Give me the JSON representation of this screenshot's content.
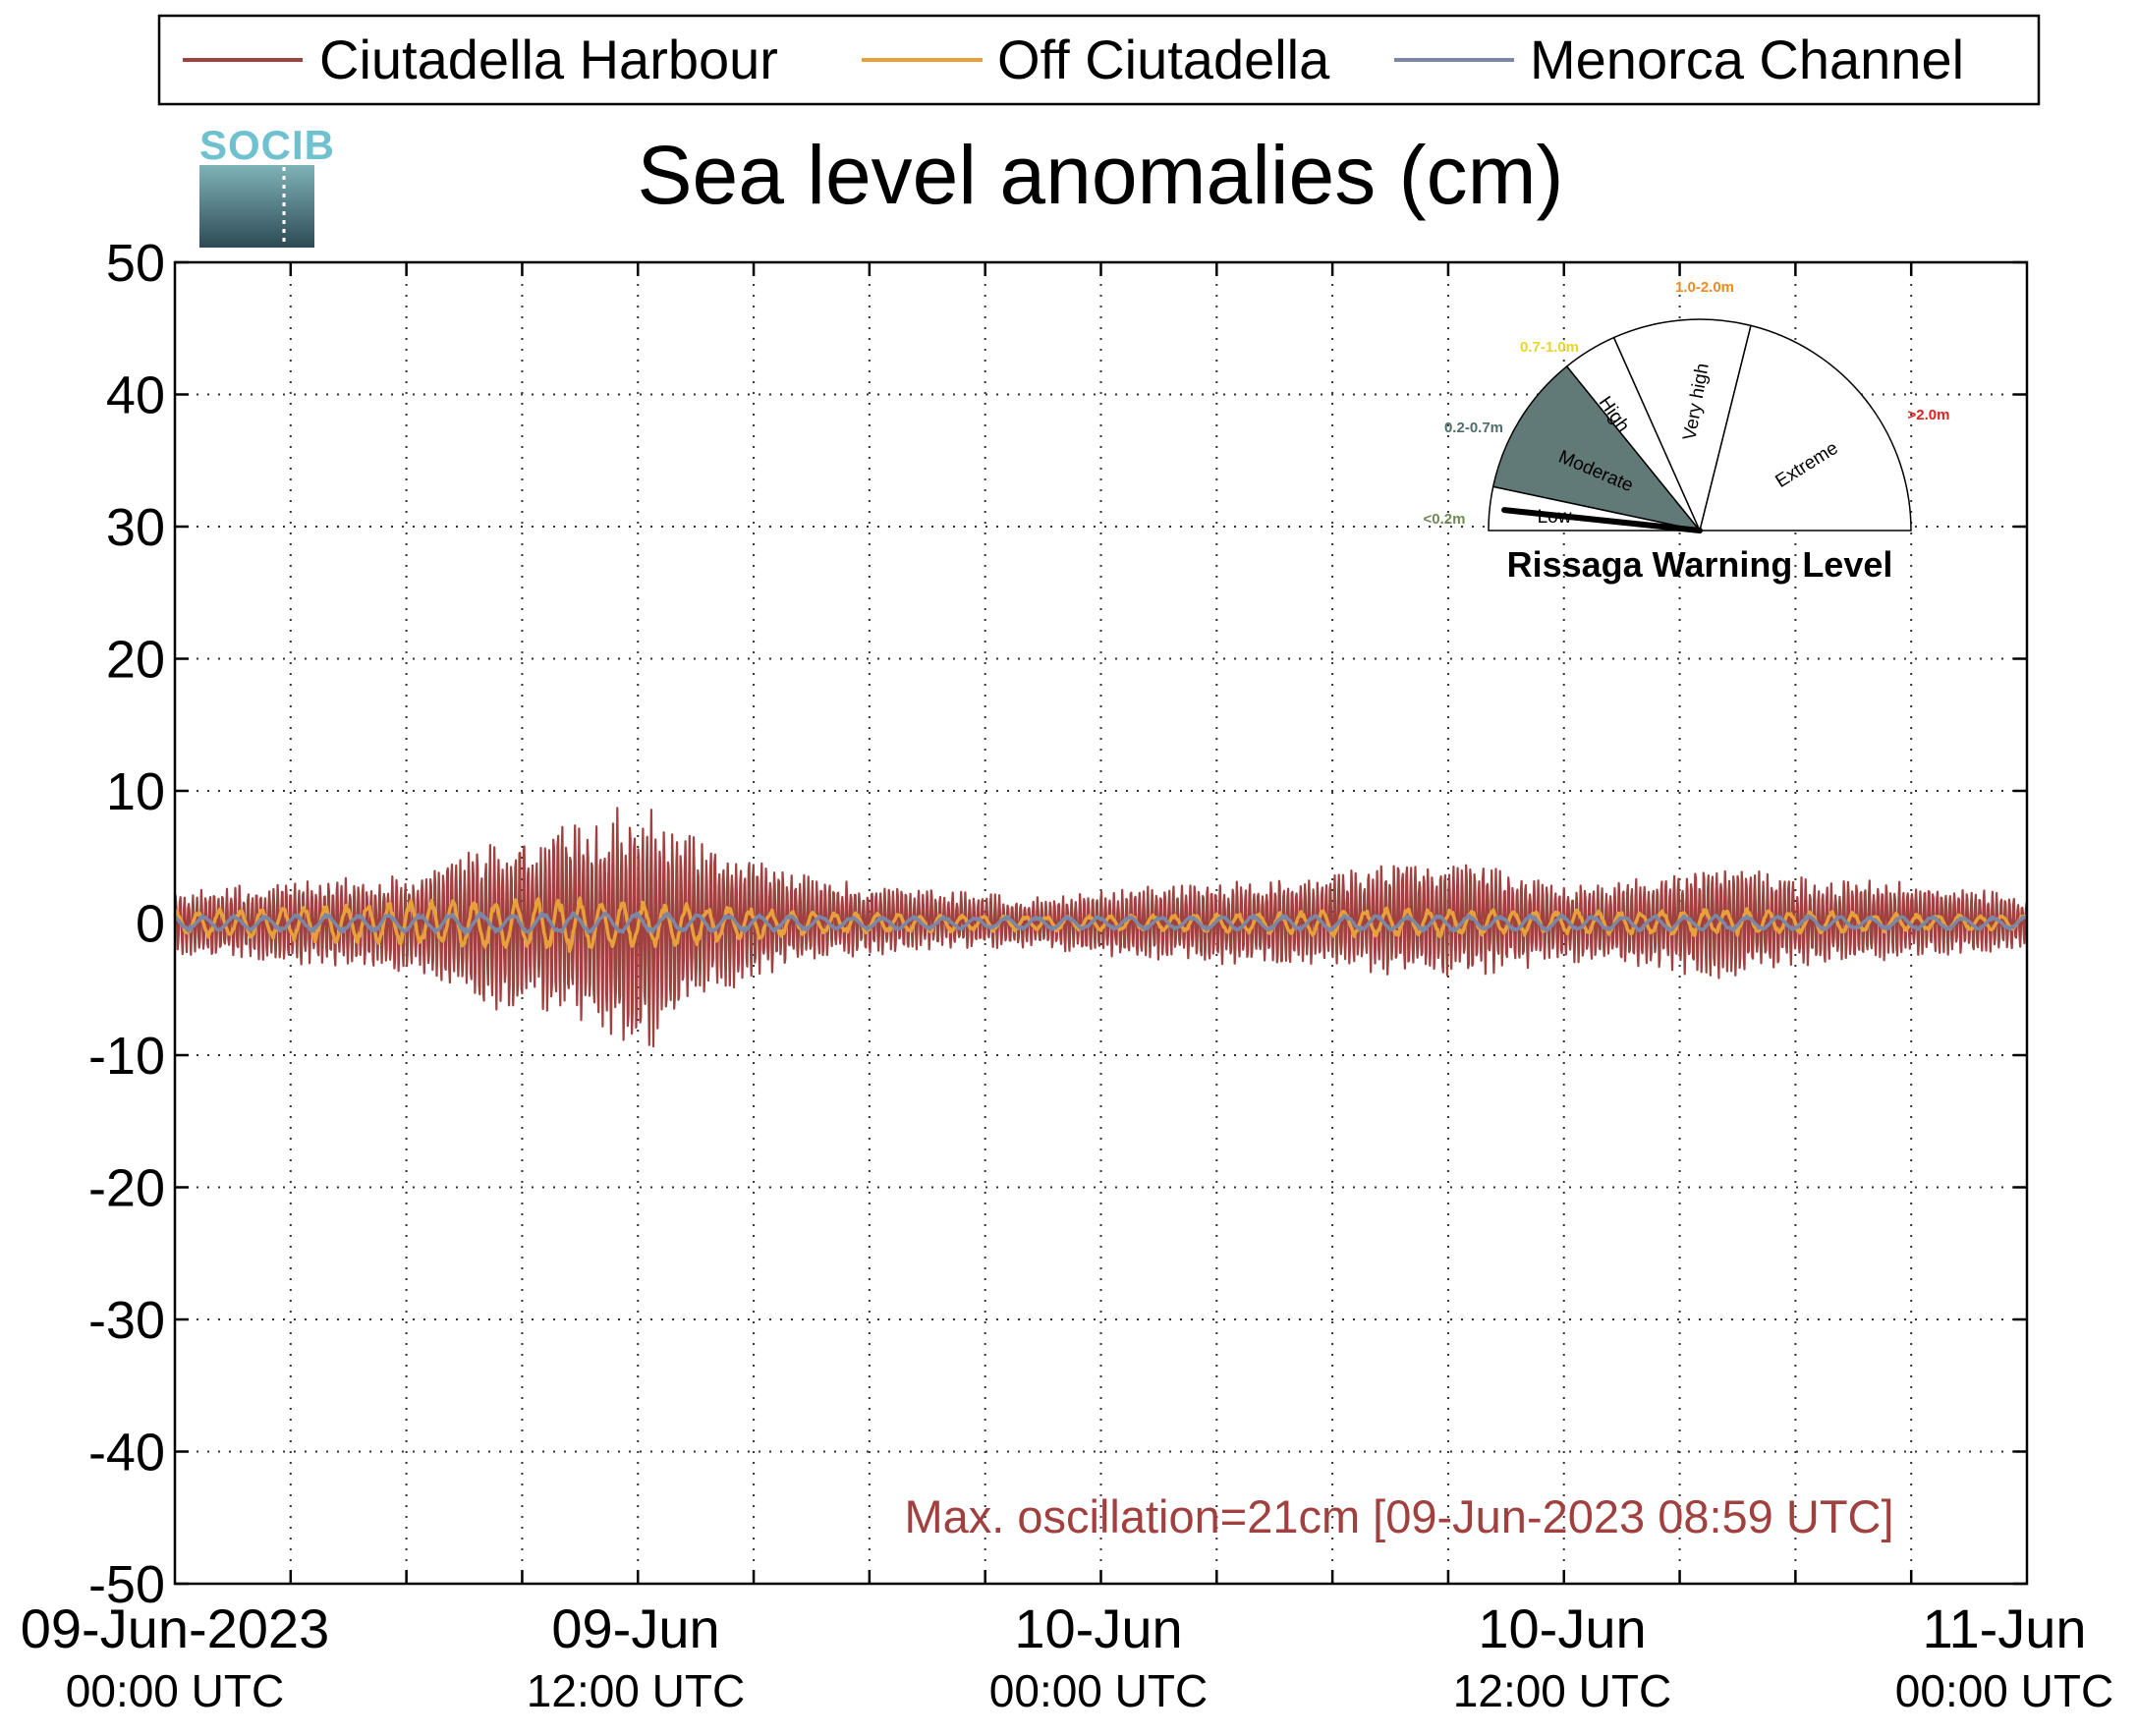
{
  "chart_data": {
    "type": "line",
    "title": "Sea level anomalies (cm)",
    "xlabel": "",
    "ylabel": "",
    "ylim": [
      -50,
      50
    ],
    "yticks": [
      50,
      40,
      30,
      20,
      10,
      0,
      -10,
      -20,
      -30,
      -40,
      -50
    ],
    "xlim": [
      "2023-06-09 00:00",
      "2023-06-11 00:00"
    ],
    "xticks": [
      {
        "line1": "09-Jun-2023",
        "line2": "00:00 UTC"
      },
      {
        "line1": "09-Jun",
        "line2": "12:00 UTC"
      },
      {
        "line1": "10-Jun",
        "line2": "00:00 UTC"
      },
      {
        "line1": "10-Jun",
        "line2": "12:00 UTC"
      },
      {
        "line1": "11-Jun",
        "line2": "00:00 UTC"
      }
    ],
    "x_hours": [
      0,
      2,
      4,
      6,
      8,
      10,
      12,
      14,
      16,
      18,
      20,
      22,
      24,
      26,
      28,
      30,
      32,
      34,
      36,
      38,
      40,
      42,
      44,
      46,
      48
    ],
    "grid": true,
    "legend_position": "top",
    "series": [
      {
        "name": "Ciutadella Harbour",
        "color": "#a0403f",
        "envelope_upper": [
          2.5,
          3,
          3.5,
          4,
          6,
          8,
          9.5,
          6,
          4,
          3,
          2.5,
          2,
          2.5,
          3,
          3.5,
          4,
          5,
          4.5,
          3,
          3.5,
          5,
          3.5,
          3.5,
          3,
          2
        ],
        "envelope_lower": [
          -2.5,
          -3,
          -3.5,
          -4,
          -6.5,
          -7.5,
          -10.5,
          -5.5,
          -3.5,
          -2.5,
          -2,
          -2,
          -2.5,
          -3,
          -3.5,
          -3.5,
          -4.5,
          -4,
          -3,
          -3.5,
          -4.5,
          -3.5,
          -3,
          -2.5,
          -2
        ]
      },
      {
        "name": "Off Ciutadella",
        "color": "#e8a03a",
        "envelope_upper": [
          1,
          1.2,
          1.5,
          1.8,
          2,
          2,
          1.8,
          1.4,
          1,
          0.8,
          0.7,
          0.6,
          0.6,
          0.7,
          0.8,
          1,
          1.2,
          1.1,
          1,
          1,
          1.2,
          1,
          0.8,
          0.7,
          0.6
        ],
        "envelope_lower": [
          -1,
          -1.2,
          -1.5,
          -1.8,
          -2.2,
          -2.2,
          -2,
          -1.5,
          -1,
          -0.8,
          -0.7,
          -0.6,
          -0.6,
          -0.7,
          -0.8,
          -1,
          -1.1,
          -1,
          -0.9,
          -0.9,
          -1,
          -0.9,
          -0.7,
          -0.6,
          -0.5
        ]
      },
      {
        "name": "Menorca Channel",
        "color": "#7b87a6",
        "envelope_upper": [
          0.6,
          0.6,
          0.7,
          0.7,
          0.8,
          0.8,
          0.8,
          0.7,
          0.6,
          0.5,
          0.5,
          0.5,
          0.5,
          0.5,
          0.6,
          0.6,
          0.6,
          0.6,
          0.6,
          0.6,
          0.6,
          0.6,
          0.5,
          0.5,
          0.5
        ],
        "envelope_lower": [
          -0.6,
          -0.6,
          -0.7,
          -0.7,
          -0.8,
          -0.8,
          -0.8,
          -0.7,
          -0.6,
          -0.5,
          -0.5,
          -0.5,
          -0.5,
          -0.5,
          -0.6,
          -0.6,
          -0.6,
          -0.6,
          -0.6,
          -0.6,
          -0.6,
          -0.6,
          -0.5,
          -0.5,
          -0.5
        ]
      }
    ],
    "annotation": "Max. oscillation=21cm [09-Jun-2023 08:59 UTC]",
    "annotation_color": "#a0403f"
  },
  "logo": {
    "text": "SOCIB",
    "color": "#6fc1cf"
  },
  "gauge": {
    "title": "Rissaga Warning Level",
    "current_level": "Low",
    "sectors": [
      {
        "name": "Low",
        "range": "<0.2m",
        "range_color": "#6f8a55",
        "fill": "#ffffff"
      },
      {
        "name": "Moderate",
        "range": "0.2-0.7m",
        "range_color": "#4e6f6b",
        "fill": "#627a77"
      },
      {
        "name": "High",
        "range": "0.7-1.0m",
        "range_color": "#e8d62a",
        "fill": "#ffffff"
      },
      {
        "name": "Very high",
        "range": "1.0-2.0m",
        "range_color": "#f08a1c",
        "fill": "#ffffff"
      },
      {
        "name": "Extreme",
        "range": ">2.0m",
        "range_color": "#e02020",
        "fill": "#ffffff"
      }
    ]
  }
}
